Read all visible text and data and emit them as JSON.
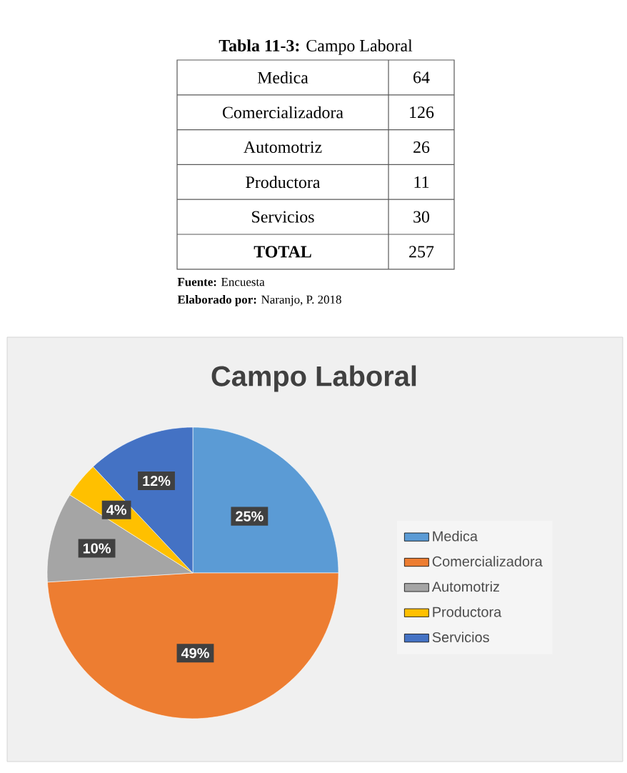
{
  "chart_data": {
    "type": "pie",
    "title": "Campo Laboral",
    "categories": [
      "Medica",
      "Comercializadora",
      "Automotriz",
      "Productora",
      "Servicios"
    ],
    "values": [
      25,
      49,
      10,
      4,
      12
    ],
    "value_labels": [
      "25%",
      "49%",
      "10%",
      "4%",
      "12%"
    ],
    "colors": [
      "#5b9bd5",
      "#ed7d31",
      "#a5a5a5",
      "#ffc000",
      "#4472c4"
    ],
    "legend": "right",
    "annotations": [
      "**Tabla 11-3:** Campo Laboral",
      "64",
      "126",
      "26",
      "11",
      "30",
      "**TOTAL**",
      "257",
      "**Fuente:** Encuesta",
      "**Elaborado por:** Naranjo, P. 2018"
    ]
  }
}
